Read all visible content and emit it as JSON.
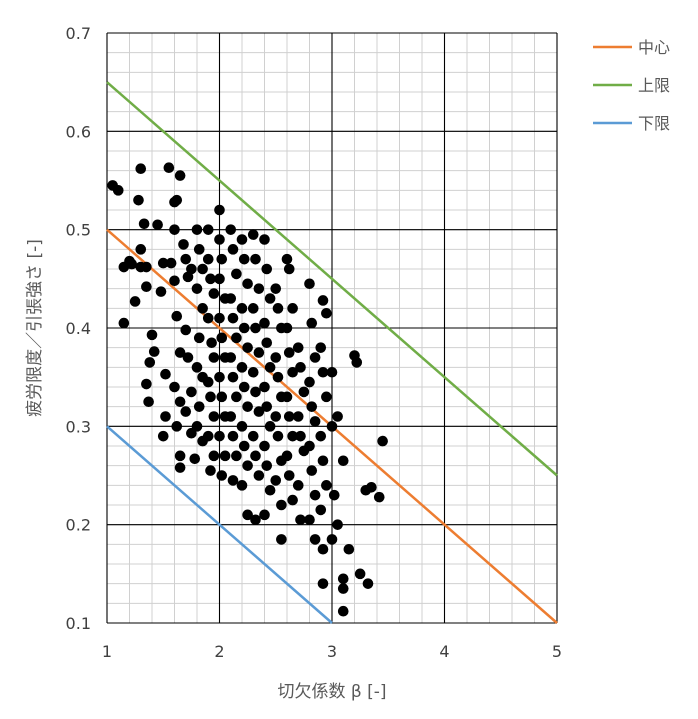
{
  "chart_data": {
    "type": "scatter",
    "xlabel": "切欠係数 β [-]",
    "ylabel": "疲労限度／引張強さ [-]",
    "xlim": [
      1,
      5
    ],
    "ylim": [
      0.1,
      0.7
    ],
    "x_ticks": [
      "1",
      "2",
      "3",
      "4",
      "5"
    ],
    "y_ticks": [
      "0.1",
      "0.2",
      "0.3",
      "0.4",
      "0.5",
      "0.6",
      "0.7"
    ],
    "grid": "major and minor",
    "legend_position": "right",
    "lines": [
      {
        "name": "中心",
        "color": "#ED7D31",
        "x": [
          1,
          5
        ],
        "y": [
          0.5,
          0.1
        ]
      },
      {
        "name": "上限",
        "color": "#70AD47",
        "x": [
          1,
          5
        ],
        "y": [
          0.65,
          0.25
        ]
      },
      {
        "name": "下限",
        "color": "#5B9BD5",
        "x": [
          1,
          3
        ],
        "y": [
          0.3,
          0.1
        ]
      }
    ],
    "points": [
      [
        1.05,
        0.545
      ],
      [
        1.1,
        0.54
      ],
      [
        1.15,
        0.462
      ],
      [
        1.15,
        0.405
      ],
      [
        1.2,
        0.468
      ],
      [
        1.22,
        0.465
      ],
      [
        1.25,
        0.427
      ],
      [
        1.28,
        0.53
      ],
      [
        1.3,
        0.48
      ],
      [
        1.3,
        0.462
      ],
      [
        1.3,
        0.562
      ],
      [
        1.33,
        0.506
      ],
      [
        1.35,
        0.442
      ],
      [
        1.35,
        0.462
      ],
      [
        1.38,
        0.365
      ],
      [
        1.35,
        0.343
      ],
      [
        1.37,
        0.325
      ],
      [
        1.4,
        0.393
      ],
      [
        1.42,
        0.376
      ],
      [
        1.45,
        0.505
      ],
      [
        1.48,
        0.437
      ],
      [
        1.5,
        0.466
      ],
      [
        1.52,
        0.353
      ],
      [
        1.52,
        0.31
      ],
      [
        1.5,
        0.29
      ],
      [
        1.55,
        0.563
      ],
      [
        1.57,
        0.466
      ],
      [
        1.6,
        0.528
      ],
      [
        1.6,
        0.5
      ],
      [
        1.62,
        0.53
      ],
      [
        1.65,
        0.555
      ],
      [
        1.6,
        0.448
      ],
      [
        1.62,
        0.412
      ],
      [
        1.65,
        0.375
      ],
      [
        1.6,
        0.34
      ],
      [
        1.65,
        0.325
      ],
      [
        1.62,
        0.3
      ],
      [
        1.65,
        0.27
      ],
      [
        1.65,
        0.258
      ],
      [
        1.68,
        0.485
      ],
      [
        1.7,
        0.47
      ],
      [
        1.72,
        0.452
      ],
      [
        1.75,
        0.46
      ],
      [
        1.7,
        0.398
      ],
      [
        1.72,
        0.37
      ],
      [
        1.75,
        0.335
      ],
      [
        1.7,
        0.315
      ],
      [
        1.75,
        0.293
      ],
      [
        1.78,
        0.267
      ],
      [
        1.8,
        0.5
      ],
      [
        1.82,
        0.48
      ],
      [
        1.85,
        0.46
      ],
      [
        1.8,
        0.44
      ],
      [
        1.85,
        0.42
      ],
      [
        1.82,
        0.39
      ],
      [
        1.8,
        0.36
      ],
      [
        1.85,
        0.35
      ],
      [
        1.82,
        0.32
      ],
      [
        1.8,
        0.3
      ],
      [
        1.85,
        0.285
      ],
      [
        1.9,
        0.5
      ],
      [
        1.9,
        0.47
      ],
      [
        1.92,
        0.45
      ],
      [
        1.95,
        0.435
      ],
      [
        1.9,
        0.41
      ],
      [
        1.93,
        0.385
      ],
      [
        1.95,
        0.37
      ],
      [
        1.9,
        0.345
      ],
      [
        1.92,
        0.33
      ],
      [
        1.95,
        0.31
      ],
      [
        1.9,
        0.29
      ],
      [
        1.95,
        0.27
      ],
      [
        1.92,
        0.255
      ],
      [
        2.0,
        0.52
      ],
      [
        2.0,
        0.49
      ],
      [
        2.02,
        0.47
      ],
      [
        2.0,
        0.45
      ],
      [
        2.05,
        0.43
      ],
      [
        2.0,
        0.41
      ],
      [
        2.02,
        0.39
      ],
      [
        2.05,
        0.37
      ],
      [
        2.0,
        0.35
      ],
      [
        2.02,
        0.33
      ],
      [
        2.05,
        0.31
      ],
      [
        2.0,
        0.29
      ],
      [
        2.05,
        0.27
      ],
      [
        2.02,
        0.25
      ],
      [
        2.1,
        0.5
      ],
      [
        2.12,
        0.48
      ],
      [
        2.15,
        0.455
      ],
      [
        2.1,
        0.43
      ],
      [
        2.12,
        0.41
      ],
      [
        2.15,
        0.39
      ],
      [
        2.1,
        0.37
      ],
      [
        2.12,
        0.35
      ],
      [
        2.15,
        0.33
      ],
      [
        2.1,
        0.31
      ],
      [
        2.12,
        0.29
      ],
      [
        2.15,
        0.27
      ],
      [
        2.12,
        0.245
      ],
      [
        2.2,
        0.49
      ],
      [
        2.22,
        0.47
      ],
      [
        2.25,
        0.445
      ],
      [
        2.2,
        0.42
      ],
      [
        2.22,
        0.4
      ],
      [
        2.25,
        0.38
      ],
      [
        2.2,
        0.36
      ],
      [
        2.22,
        0.34
      ],
      [
        2.25,
        0.32
      ],
      [
        2.2,
        0.3
      ],
      [
        2.22,
        0.28
      ],
      [
        2.25,
        0.26
      ],
      [
        2.2,
        0.24
      ],
      [
        2.25,
        0.21
      ],
      [
        2.3,
        0.495
      ],
      [
        2.32,
        0.47
      ],
      [
        2.35,
        0.44
      ],
      [
        2.3,
        0.42
      ],
      [
        2.32,
        0.4
      ],
      [
        2.35,
        0.375
      ],
      [
        2.3,
        0.355
      ],
      [
        2.32,
        0.335
      ],
      [
        2.35,
        0.315
      ],
      [
        2.3,
        0.29
      ],
      [
        2.32,
        0.27
      ],
      [
        2.35,
        0.25
      ],
      [
        2.32,
        0.205
      ],
      [
        2.4,
        0.49
      ],
      [
        2.42,
        0.46
      ],
      [
        2.45,
        0.43
      ],
      [
        2.4,
        0.405
      ],
      [
        2.42,
        0.385
      ],
      [
        2.45,
        0.36
      ],
      [
        2.4,
        0.34
      ],
      [
        2.42,
        0.32
      ],
      [
        2.45,
        0.3
      ],
      [
        2.4,
        0.28
      ],
      [
        2.42,
        0.26
      ],
      [
        2.45,
        0.235
      ],
      [
        2.4,
        0.21
      ],
      [
        2.5,
        0.44
      ],
      [
        2.52,
        0.42
      ],
      [
        2.55,
        0.4
      ],
      [
        2.5,
        0.37
      ],
      [
        2.52,
        0.35
      ],
      [
        2.55,
        0.33
      ],
      [
        2.5,
        0.31
      ],
      [
        2.52,
        0.29
      ],
      [
        2.55,
        0.265
      ],
      [
        2.5,
        0.245
      ],
      [
        2.55,
        0.22
      ],
      [
        2.55,
        0.185
      ],
      [
        2.6,
        0.47
      ],
      [
        2.62,
        0.46
      ],
      [
        2.65,
        0.42
      ],
      [
        2.6,
        0.4
      ],
      [
        2.62,
        0.375
      ],
      [
        2.65,
        0.355
      ],
      [
        2.6,
        0.33
      ],
      [
        2.62,
        0.31
      ],
      [
        2.65,
        0.29
      ],
      [
        2.6,
        0.27
      ],
      [
        2.62,
        0.25
      ],
      [
        2.65,
        0.225
      ],
      [
        2.7,
        0.38
      ],
      [
        2.72,
        0.36
      ],
      [
        2.75,
        0.335
      ],
      [
        2.7,
        0.31
      ],
      [
        2.72,
        0.29
      ],
      [
        2.75,
        0.275
      ],
      [
        2.7,
        0.24
      ],
      [
        2.72,
        0.205
      ],
      [
        2.8,
        0.445
      ],
      [
        2.82,
        0.405
      ],
      [
        2.85,
        0.37
      ],
      [
        2.8,
        0.345
      ],
      [
        2.82,
        0.32
      ],
      [
        2.85,
        0.305
      ],
      [
        2.8,
        0.28
      ],
      [
        2.82,
        0.255
      ],
      [
        2.85,
        0.23
      ],
      [
        2.8,
        0.205
      ],
      [
        2.85,
        0.185
      ],
      [
        2.9,
        0.38
      ],
      [
        2.92,
        0.355
      ],
      [
        2.95,
        0.33
      ],
      [
        2.9,
        0.29
      ],
      [
        2.92,
        0.265
      ],
      [
        2.95,
        0.24
      ],
      [
        2.9,
        0.215
      ],
      [
        2.92,
        0.175
      ],
      [
        2.92,
        0.14
      ],
      [
        2.92,
        0.428
      ],
      [
        2.95,
        0.415
      ],
      [
        3.0,
        0.355
      ],
      [
        3.0,
        0.3
      ],
      [
        3.02,
        0.23
      ],
      [
        3.0,
        0.185
      ],
      [
        3.05,
        0.31
      ],
      [
        3.05,
        0.2
      ],
      [
        3.1,
        0.265
      ],
      [
        3.1,
        0.145
      ],
      [
        3.1,
        0.135
      ],
      [
        3.1,
        0.112
      ],
      [
        3.15,
        0.175
      ],
      [
        3.2,
        0.372
      ],
      [
        3.22,
        0.365
      ],
      [
        3.25,
        0.15
      ],
      [
        3.3,
        0.235
      ],
      [
        3.32,
        0.14
      ],
      [
        3.35,
        0.238
      ],
      [
        3.42,
        0.228
      ],
      [
        3.45,
        0.285
      ]
    ]
  }
}
